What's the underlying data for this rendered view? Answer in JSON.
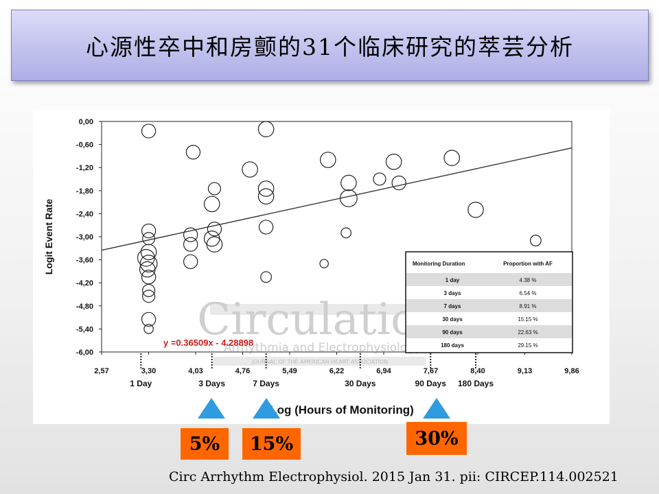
{
  "slide": {
    "title": "心源性卒中和房颤的31个临床研究的萃芸分析",
    "citation": "Circ Arrhythm Electrophysiol. 2015 Jan 31. pii: CIRCEP.114.002521",
    "callouts": [
      {
        "label": "5%"
      },
      {
        "label": "15%"
      },
      {
        "label": "30%"
      }
    ]
  },
  "chart_data": {
    "type": "scatter",
    "xlabel": "Log (Hours of Monitoring)",
    "ylabel": "Logit Event Rate",
    "xlim": [
      2.57,
      9.86
    ],
    "ylim": [
      -6.0,
      0.0
    ],
    "xticks": [
      "2,57",
      "3,30",
      "4,03",
      "4,76",
      "5,49",
      "6,22",
      "6,94",
      "7,67",
      "8,40",
      "9,13",
      "9,86"
    ],
    "yticks": [
      "0,00",
      "-0,60",
      "-1,20",
      "-1,80",
      "-2,40",
      "-3,00",
      "-3,60",
      "-4,20",
      "-4,80",
      "-5,40",
      "-6,00"
    ],
    "duration_labels": [
      {
        "label": "1 Day",
        "x": 3.18
      },
      {
        "label": "3 Days",
        "x": 4.28
      },
      {
        "label": "7 Days",
        "x": 5.12
      },
      {
        "label": "30 Days",
        "x": 6.58
      },
      {
        "label": "90 Days",
        "x": 7.67
      },
      {
        "label": "180 Days",
        "x": 8.37
      }
    ],
    "regression": {
      "equation": "y =0.36509x - 4.28898",
      "slope": 0.36509,
      "intercept": -4.28898
    },
    "watermark": {
      "line1": "Circulation",
      "line2": "Arrhythmia and Electrophysiology",
      "line3": "JOURNAL OF THE AMERICAN HEART ASSOCIATION"
    },
    "series": [
      {
        "points": [
          {
            "x": 3.3,
            "y": -0.25,
            "r": 0.18
          },
          {
            "x": 3.3,
            "y": -2.85,
            "r": 0.18
          },
          {
            "x": 3.3,
            "y": -3.05,
            "r": 0.16
          },
          {
            "x": 3.3,
            "y": -3.4,
            "r": 0.2
          },
          {
            "x": 3.26,
            "y": -3.55,
            "r": 0.22
          },
          {
            "x": 3.3,
            "y": -3.7,
            "r": 0.22
          },
          {
            "x": 3.28,
            "y": -3.85,
            "r": 0.2
          },
          {
            "x": 3.3,
            "y": -4.05,
            "r": 0.18
          },
          {
            "x": 3.3,
            "y": -4.4,
            "r": 0.16
          },
          {
            "x": 3.3,
            "y": -4.55,
            "r": 0.16
          },
          {
            "x": 3.3,
            "y": -5.15,
            "r": 0.18
          },
          {
            "x": 3.3,
            "y": -5.4,
            "r": 0.12
          },
          {
            "x": 3.99,
            "y": -0.8,
            "r": 0.18
          },
          {
            "x": 3.95,
            "y": -2.95,
            "r": 0.18
          },
          {
            "x": 3.95,
            "y": -3.2,
            "r": 0.18
          },
          {
            "x": 3.95,
            "y": -3.65,
            "r": 0.18
          },
          {
            "x": 4.32,
            "y": -1.75,
            "r": 0.16
          },
          {
            "x": 4.28,
            "y": -2.15,
            "r": 0.2
          },
          {
            "x": 4.32,
            "y": -2.8,
            "r": 0.18
          },
          {
            "x": 4.28,
            "y": -3.05,
            "r": 0.2
          },
          {
            "x": 4.32,
            "y": -3.2,
            "r": 0.2
          },
          {
            "x": 4.87,
            "y": -1.25,
            "r": 0.2
          },
          {
            "x": 5.12,
            "y": -0.2,
            "r": 0.2
          },
          {
            "x": 5.12,
            "y": -1.75,
            "r": 0.2
          },
          {
            "x": 5.12,
            "y": -1.95,
            "r": 0.2
          },
          {
            "x": 5.12,
            "y": -2.75,
            "r": 0.18
          },
          {
            "x": 5.12,
            "y": -4.05,
            "r": 0.14
          },
          {
            "x": 6.02,
            "y": -3.7,
            "r": 0.11
          },
          {
            "x": 6.08,
            "y": -1.0,
            "r": 0.2
          },
          {
            "x": 6.36,
            "y": -2.9,
            "r": 0.13
          },
          {
            "x": 6.4,
            "y": -1.6,
            "r": 0.2
          },
          {
            "x": 6.4,
            "y": -2.0,
            "r": 0.22
          },
          {
            "x": 6.88,
            "y": -1.5,
            "r": 0.16
          },
          {
            "x": 7.1,
            "y": -1.05,
            "r": 0.2
          },
          {
            "x": 7.18,
            "y": -1.6,
            "r": 0.18
          },
          {
            "x": 8.0,
            "y": -0.95,
            "r": 0.2
          },
          {
            "x": 8.37,
            "y": -2.3,
            "r": 0.2
          },
          {
            "x": 9.3,
            "y": -3.1,
            "r": 0.14
          }
        ]
      }
    ],
    "table": {
      "columns": [
        "Monitoring Duration",
        "Proportion with AF"
      ],
      "rows": [
        [
          "1 day",
          "4.38 %"
        ],
        [
          "3 days",
          "6.54 %"
        ],
        [
          "7 days",
          "8.91 %"
        ],
        [
          "30 days",
          "15.15 %"
        ],
        [
          "90 days",
          "22.63 %"
        ],
        [
          "180 days",
          "29.15 %"
        ]
      ]
    }
  }
}
